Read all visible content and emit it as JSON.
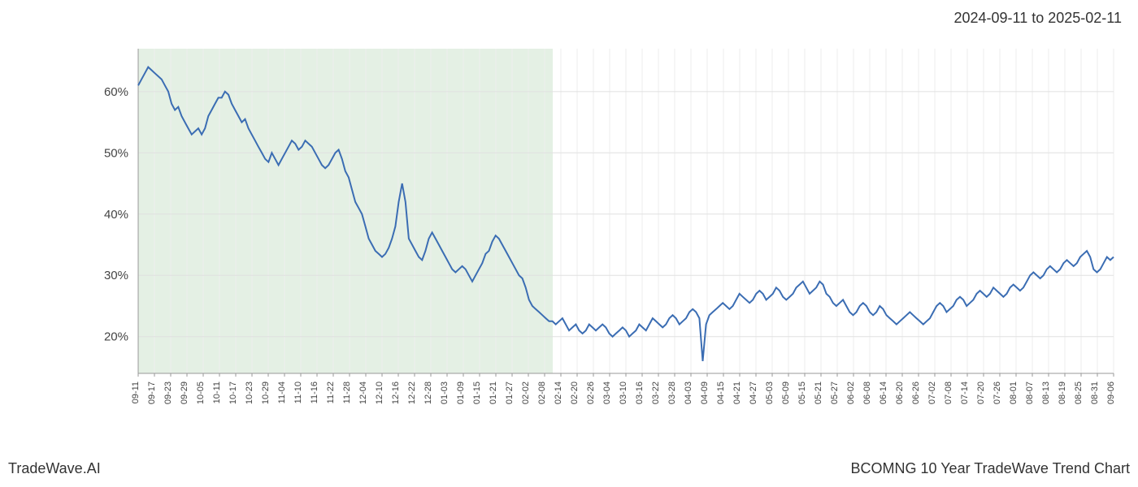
{
  "date_range_text": "2024-09-11 to 2025-02-11",
  "footer_left": "TradeWave.AI",
  "footer_right": "BCOMNG 10 Year TradeWave Trend Chart",
  "chart": {
    "type": "line",
    "line_color": "#3b6db3",
    "line_width": 2,
    "background_color": "#ffffff",
    "shaded_region_color": "#cde3cd",
    "shaded_region_opacity": 0.55,
    "grid_color": "#e0e0e0",
    "vgrid_color": "#eeeeee",
    "axis_color": "#999999",
    "tick_label_color": "#444444",
    "ylim": [
      14,
      67
    ],
    "y_ticks": [
      20,
      30,
      40,
      50,
      60
    ],
    "y_tick_format": "%",
    "x_labels": [
      "09-11",
      "09-17",
      "09-23",
      "09-29",
      "10-05",
      "10-11",
      "10-17",
      "10-23",
      "10-29",
      "11-04",
      "11-10",
      "11-16",
      "11-22",
      "11-28",
      "12-04",
      "12-10",
      "12-16",
      "12-22",
      "12-28",
      "01-03",
      "01-09",
      "01-15",
      "01-21",
      "01-27",
      "02-02",
      "02-08",
      "02-14",
      "02-20",
      "02-26",
      "03-04",
      "03-10",
      "03-16",
      "03-22",
      "03-28",
      "04-03",
      "04-09",
      "04-15",
      "04-21",
      "04-27",
      "05-03",
      "05-09",
      "05-15",
      "05-21",
      "05-27",
      "06-02",
      "06-08",
      "06-14",
      "06-20",
      "06-26",
      "07-02",
      "07-08",
      "07-14",
      "07-20",
      "07-26",
      "08-01",
      "08-07",
      "08-13",
      "08-19",
      "08-25",
      "08-31",
      "09-06"
    ],
    "shaded_start_index": 0,
    "shaded_end_index": 25.5,
    "y_label_fontsize": 15,
    "x_label_fontsize": 11,
    "values": [
      61,
      62,
      63,
      64,
      63.5,
      63,
      62.5,
      62,
      61,
      60,
      58,
      57,
      57.5,
      56,
      55,
      54,
      53,
      53.5,
      54,
      53,
      54,
      56,
      57,
      58,
      59,
      59,
      60,
      59.5,
      58,
      57,
      56,
      55,
      55.5,
      54,
      53,
      52,
      51,
      50,
      49,
      48.5,
      50,
      49,
      48,
      49,
      50,
      51,
      52,
      51.5,
      50.5,
      51,
      52,
      51.5,
      51,
      50,
      49,
      48,
      47.5,
      48,
      49,
      50,
      50.5,
      49,
      47,
      46,
      44,
      42,
      41,
      40,
      38,
      36,
      35,
      34,
      33.5,
      33,
      33.5,
      34.5,
      36,
      38,
      42,
      45,
      42,
      36,
      35,
      34,
      33,
      32.5,
      34,
      36,
      37,
      36,
      35,
      34,
      33,
      32,
      31,
      30.5,
      31,
      31.5,
      31,
      30,
      29,
      30,
      31,
      32,
      33.5,
      34,
      35.5,
      36.5,
      36,
      35,
      34,
      33,
      32,
      31,
      30,
      29.5,
      28,
      26,
      25,
      24.5,
      24,
      23.5,
      23,
      22.5,
      22.5,
      22,
      22.5,
      23,
      22,
      21,
      21.5,
      22,
      21,
      20.5,
      21,
      22,
      21.5,
      21,
      21.5,
      22,
      21.5,
      20.5,
      20,
      20.5,
      21,
      21.5,
      21,
      20,
      20.5,
      21,
      22,
      21.5,
      21,
      22,
      23,
      22.5,
      22,
      21.5,
      22,
      23,
      23.5,
      23,
      22,
      22.5,
      23,
      24,
      24.5,
      24,
      23,
      16,
      22,
      23.5,
      24,
      24.5,
      25,
      25.5,
      25,
      24.5,
      25,
      26,
      27,
      26.5,
      26,
      25.5,
      26,
      27,
      27.5,
      27,
      26,
      26.5,
      27,
      28,
      27.5,
      26.5,
      26,
      26.5,
      27,
      28,
      28.5,
      29,
      28,
      27,
      27.5,
      28,
      29,
      28.5,
      27,
      26.5,
      25.5,
      25,
      25.5,
      26,
      25,
      24,
      23.5,
      24,
      25,
      25.5,
      25,
      24,
      23.5,
      24,
      25,
      24.5,
      23.5,
      23,
      22.5,
      22,
      22.5,
      23,
      23.5,
      24,
      23.5,
      23,
      22.5,
      22,
      22.5,
      23,
      24,
      25,
      25.5,
      25,
      24,
      24.5,
      25,
      26,
      26.5,
      26,
      25,
      25.5,
      26,
      27,
      27.5,
      27,
      26.5,
      27,
      28,
      27.5,
      27,
      26.5,
      27,
      28,
      28.5,
      28,
      27.5,
      28,
      29,
      30,
      30.5,
      30,
      29.5,
      30,
      31,
      31.5,
      31,
      30.5,
      31,
      32,
      32.5,
      32,
      31.5,
      32,
      33,
      33.5,
      34,
      33,
      31,
      30.5,
      31,
      32,
      33,
      32.5,
      33
    ]
  }
}
